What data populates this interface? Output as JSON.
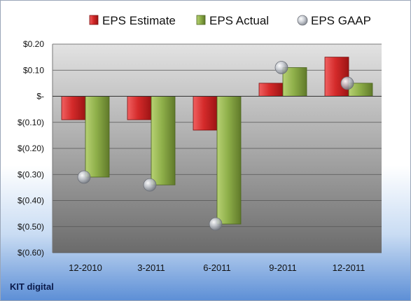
{
  "company": "KIT digital",
  "colors": {
    "estimate": "#d42a2a",
    "actual": "#8fb04a",
    "gaap": "#b0b4bc"
  },
  "chart_data": {
    "type": "bar",
    "categories": [
      "12-2010",
      "3-2011",
      "6-2011",
      "9-2011",
      "12-2011"
    ],
    "series": [
      {
        "name": "EPS Estimate",
        "values": [
          -0.09,
          -0.09,
          -0.13,
          0.05,
          0.15
        ]
      },
      {
        "name": "EPS Actual",
        "values": [
          -0.31,
          -0.34,
          -0.49,
          0.11,
          0.05
        ]
      },
      {
        "name": "EPS GAAP",
        "values": [
          -0.31,
          -0.34,
          -0.49,
          0.11,
          0.05
        ],
        "marker": "circle"
      }
    ],
    "yticks": [
      0.2,
      0.1,
      0,
      -0.1,
      -0.2,
      -0.3,
      -0.4,
      -0.5,
      -0.6
    ],
    "ytick_labels": [
      "$0.20",
      "$0.10",
      "$-",
      "$(0.10)",
      "$(0.20)",
      "$(0.30)",
      "$(0.40)",
      "$(0.50)",
      "$(0.60)"
    ],
    "ylim": [
      -0.6,
      0.2
    ],
    "grid": true,
    "legend": "top-center"
  }
}
